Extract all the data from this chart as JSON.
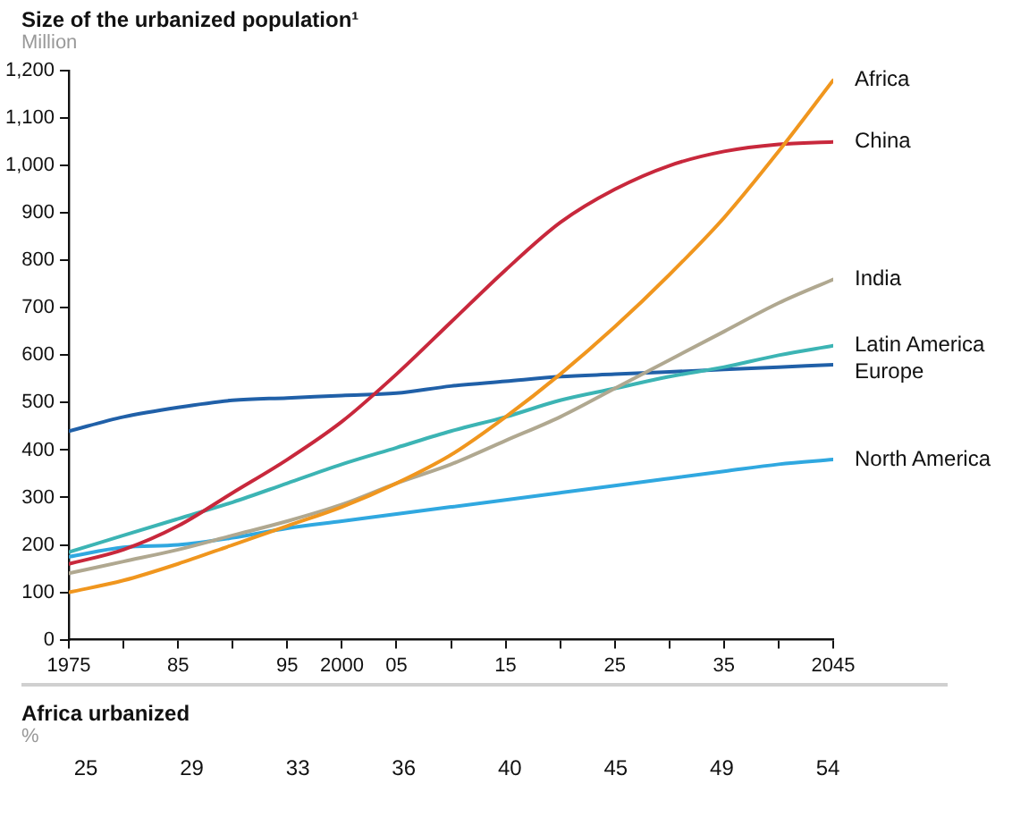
{
  "chart_data": [
    {
      "type": "line",
      "title": "Size of the urbanized population¹",
      "subtitle": "Million",
      "x": [
        1975,
        1980,
        1985,
        1990,
        1995,
        2000,
        2005,
        2010,
        2015,
        2020,
        2025,
        2030,
        2035,
        2040,
        2045
      ],
      "series": [
        {
          "name": "Africa",
          "color": "#f0961e",
          "values": [
            100,
            125,
            160,
            200,
            240,
            280,
            330,
            390,
            470,
            560,
            660,
            770,
            890,
            1030,
            1180
          ]
        },
        {
          "name": "China",
          "color": "#c8283c",
          "values": [
            160,
            190,
            240,
            310,
            380,
            460,
            560,
            670,
            780,
            880,
            950,
            1000,
            1030,
            1045,
            1050
          ]
        },
        {
          "name": "India",
          "color": "#b0a890",
          "values": [
            140,
            165,
            190,
            220,
            250,
            285,
            330,
            370,
            420,
            470,
            530,
            590,
            650,
            710,
            760
          ]
        },
        {
          "name": "Latin America",
          "color": "#3cb4b4",
          "values": [
            185,
            220,
            255,
            290,
            330,
            370,
            405,
            440,
            470,
            505,
            530,
            555,
            575,
            600,
            620
          ]
        },
        {
          "name": "Europe",
          "color": "#2060a8",
          "values": [
            440,
            470,
            490,
            505,
            510,
            515,
            520,
            535,
            545,
            555,
            560,
            565,
            570,
            575,
            580
          ]
        },
        {
          "name": "North America",
          "color": "#30a8e0",
          "values": [
            175,
            195,
            200,
            215,
            235,
            250,
            265,
            280,
            295,
            310,
            325,
            340,
            355,
            370,
            380
          ]
        }
      ],
      "xlim": [
        1975,
        2045
      ],
      "xticks": [
        1975,
        {
          "value": 1980,
          "label": null
        },
        {
          "value": 1985,
          "label": "85"
        },
        {
          "value": 1990,
          "label": null
        },
        {
          "value": 1995,
          "label": "95"
        },
        2000,
        {
          "value": 2005,
          "label": "05"
        },
        {
          "value": 2010,
          "label": null
        },
        {
          "value": 2015,
          "label": "15"
        },
        {
          "value": 2020,
          "label": null
        },
        {
          "value": 2025,
          "label": "25"
        },
        {
          "value": 2030,
          "label": null
        },
        {
          "value": 2035,
          "label": "35"
        },
        {
          "value": 2040,
          "label": null
        },
        2045
      ],
      "ylim": [
        0,
        1200
      ],
      "yticks": [
        0,
        100,
        200,
        300,
        400,
        500,
        600,
        700,
        800,
        900,
        {
          "value": 1000,
          "label": "1,000"
        },
        {
          "value": 1100,
          "label": "1,100"
        },
        {
          "value": 1200,
          "label": "1,200"
        }
      ],
      "grid": false,
      "legend": false,
      "marker": "none",
      "line_style": "solid"
    },
    {
      "type": "other",
      "title": "Africa urbanized",
      "subtitle": "%",
      "categories": [
        null,
        null,
        null,
        null,
        null,
        null,
        null,
        null
      ],
      "values": [
        25,
        29,
        33,
        36,
        40,
        45,
        49,
        54
      ],
      "data_labels": true
    }
  ]
}
